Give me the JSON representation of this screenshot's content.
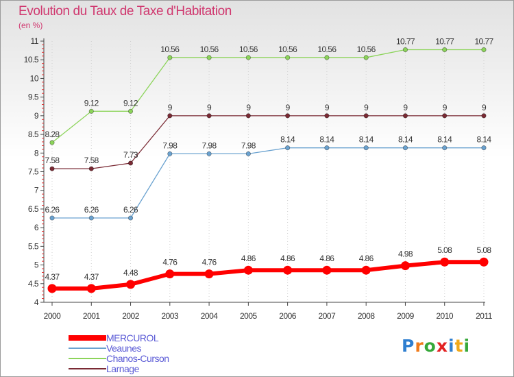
{
  "header": {
    "title": "Evolution du Taux de Taxe d'Habitation",
    "subtitle": "(en %)"
  },
  "chart_data": {
    "type": "line",
    "x": [
      "2000",
      "2001",
      "2002",
      "2003",
      "2004",
      "2005",
      "2006",
      "2007",
      "2008",
      "2009",
      "2010",
      "2011"
    ],
    "ylim": [
      4,
      11
    ],
    "yticks": [
      "4",
      "4.5",
      "5",
      "5.5",
      "6",
      "6.5",
      "7",
      "7.5",
      "8",
      "8.5",
      "9",
      "9.5",
      "10",
      "10.5",
      "11"
    ],
    "grid": "vertical",
    "legend_position": "bottom-left",
    "series": [
      {
        "name": "MERCUROL",
        "color": "#ff0000",
        "values": [
          4.37,
          4.37,
          4.48,
          4.76,
          4.76,
          4.86,
          4.86,
          4.86,
          4.86,
          4.98,
          5.08,
          5.08
        ],
        "labels": [
          "4.37",
          "4.37",
          "4.48",
          "4.76",
          "4.76",
          "4.86",
          "4.86",
          "4.86",
          "4.86",
          "4.98",
          "5.08",
          "5.08"
        ]
      },
      {
        "name": "Veaunes",
        "color": "#6aa2d0",
        "values": [
          6.26,
          6.26,
          6.26,
          7.98,
          7.98,
          7.98,
          8.14,
          8.14,
          8.14,
          8.14,
          8.14,
          8.14
        ],
        "labels": [
          "6.26",
          "6.26",
          "6.26",
          "7.98",
          "7.98",
          "7.98",
          "8.14",
          "8.14",
          "8.14",
          "8.14",
          "8.14",
          "8.14"
        ]
      },
      {
        "name": "Chanos-Curson",
        "color": "#8cd45a",
        "values": [
          8.28,
          9.12,
          9.12,
          10.56,
          10.56,
          10.56,
          10.56,
          10.56,
          10.56,
          10.77,
          10.77,
          10.77
        ],
        "labels": [
          "8.28",
          "9.12",
          "9.12",
          "10.56",
          "10.56",
          "10.56",
          "10.56",
          "10.56",
          "10.56",
          "10.77",
          "10.77",
          "10.77"
        ]
      },
      {
        "name": "Larnage",
        "color": "#7a2a34",
        "values": [
          7.58,
          7.58,
          7.73,
          9,
          9,
          9,
          9,
          9,
          9,
          9,
          9,
          9
        ],
        "labels": [
          "7.58",
          "7.58",
          "7.73",
          "9",
          "9",
          "9",
          "9",
          "9",
          "9",
          "9",
          "9",
          "9"
        ]
      }
    ]
  },
  "logo": {
    "letters": [
      "P",
      "r",
      "o",
      "x",
      "i",
      "t",
      "i"
    ],
    "colors": [
      "#2f7fd0",
      "#f07a1a",
      "#36a83a",
      "#e32222",
      "#2f7fd0",
      "#f0a81a",
      "#36a83a"
    ]
  }
}
